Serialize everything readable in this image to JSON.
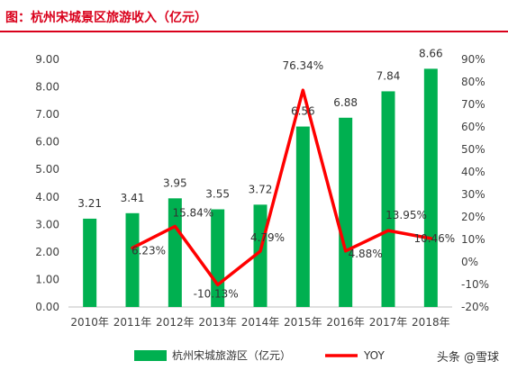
{
  "title": "图：杭州宋城景区旅游收入（亿元）",
  "watermark": "头条 @雪球",
  "chart_data": {
    "type": "bar",
    "categories": [
      "2010年",
      "2011年",
      "2012年",
      "2013年",
      "2014年",
      "2015年",
      "2016年",
      "2017年",
      "2018年"
    ],
    "series": [
      {
        "name": "杭州宋城旅游区（亿元）",
        "type": "bar",
        "axis": "left",
        "color": "#00b050",
        "values": [
          3.21,
          3.41,
          3.95,
          3.55,
          3.72,
          6.56,
          6.88,
          7.84,
          8.66
        ],
        "labels": [
          "3.21",
          "3.41",
          "3.95",
          "3.55",
          "3.72",
          "6.56",
          "6.88",
          "7.84",
          "8.66"
        ]
      },
      {
        "name": "YOY",
        "type": "line",
        "axis": "right",
        "color": "#ff0000",
        "values": [
          null,
          6.23,
          15.84,
          -10.13,
          4.79,
          76.34,
          4.88,
          13.95,
          10.46
        ],
        "labels": [
          "",
          "6.23%",
          "15.84%",
          "-10.13%",
          "4.79%",
          "76.34%",
          "4.88%",
          "13.95%",
          "10.46%"
        ]
      }
    ],
    "y_left": {
      "min": 0,
      "max": 9,
      "ticks": [
        "0.00",
        "1.00",
        "2.00",
        "3.00",
        "4.00",
        "5.00",
        "6.00",
        "7.00",
        "8.00",
        "9.00"
      ]
    },
    "y_right": {
      "min": -20,
      "max": 90,
      "ticks": [
        "-20%",
        "-10%",
        "0%",
        "10%",
        "20%",
        "30%",
        "40%",
        "50%",
        "60%",
        "70%",
        "80%",
        "90%"
      ]
    },
    "grid": false,
    "legend_position": "bottom"
  }
}
